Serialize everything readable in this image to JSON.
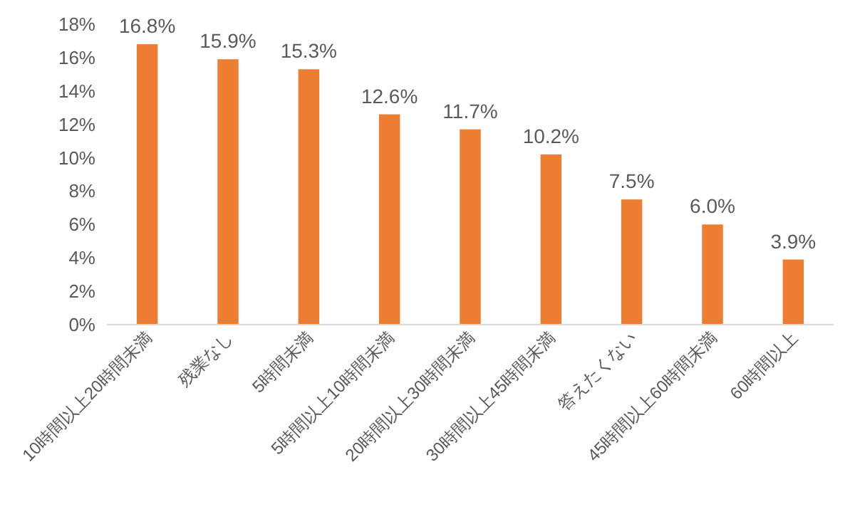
{
  "chart_data": {
    "type": "bar",
    "categories": [
      "10時間以上20時間未満",
      "残業なし",
      "5時間未満",
      "5時間以上10時間未満",
      "20時間以上30時間未満",
      "30時間以上45時間未満",
      "答えたくない",
      "45時間以上60時間未満",
      "60時間以上"
    ],
    "values": [
      16.8,
      15.9,
      15.3,
      12.6,
      11.7,
      10.2,
      7.5,
      6.0,
      3.9
    ],
    "value_labels": [
      "16.8%",
      "15.9%",
      "15.3%",
      "12.6%",
      "11.7%",
      "10.2%",
      "7.5%",
      "6.0%",
      "3.9%"
    ],
    "color": "#ed7d31",
    "ylim": [
      0,
      18
    ],
    "yticks": [
      {
        "value": 0,
        "label": "0%"
      },
      {
        "value": 2,
        "label": "2%"
      },
      {
        "value": 4,
        "label": "4%"
      },
      {
        "value": 6,
        "label": "6%"
      },
      {
        "value": 8,
        "label": "8%"
      },
      {
        "value": 10,
        "label": "10%"
      },
      {
        "value": 12,
        "label": "12%"
      },
      {
        "value": 14,
        "label": "14%"
      },
      {
        "value": 16,
        "label": "16%"
      },
      {
        "value": 18,
        "label": "18%"
      }
    ],
    "grid": false
  }
}
